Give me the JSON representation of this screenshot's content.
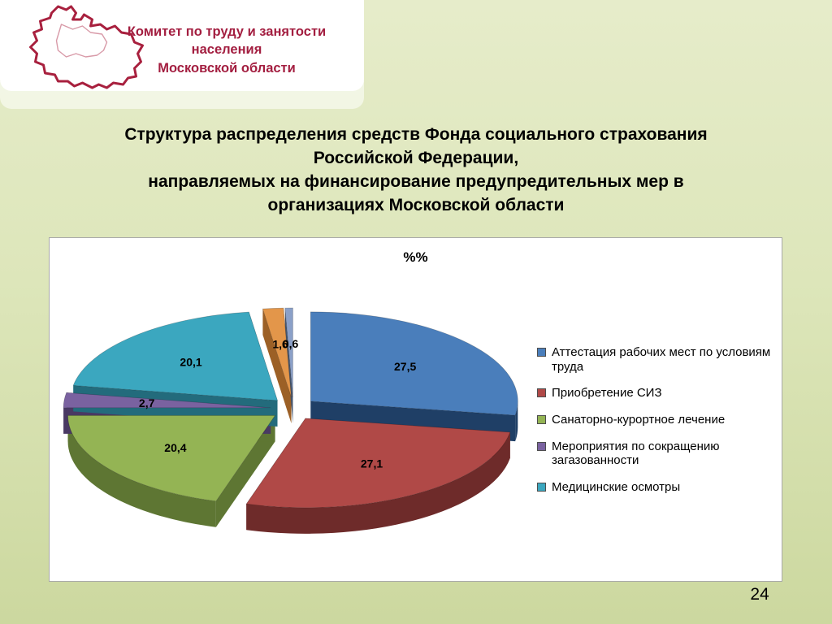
{
  "header": {
    "org_line1": "Комитет по труду и занятости населения",
    "org_line2": "Московской области"
  },
  "title": {
    "lines": [
      "Структура распределения средств Фонда социального страхования",
      "Российской Федерации,",
      "направляемых на финансирование предупредительных мер в",
      "организациях Московской области"
    ]
  },
  "page_number": "24",
  "chart_data": {
    "type": "pie",
    "title": "%%",
    "is_3d": true,
    "exploded": true,
    "legend_position": "right",
    "slices": [
      {
        "label": "Аттестация рабочих мест по условиям труда",
        "value": 27.5,
        "display": "27,5",
        "color": "#4a7ebb",
        "dark": "#1f3f66"
      },
      {
        "label": "Приобретение СИЗ",
        "value": 27.1,
        "display": "27,1",
        "color": "#b04947",
        "dark": "#6e2b2a"
      },
      {
        "label": "Санаторно-курортное лечение",
        "value": 20.4,
        "display": "20,4",
        "color": "#94b454",
        "dark": "#5e7633"
      },
      {
        "label": "Мероприятия по сокращению загазованности",
        "value": 2.7,
        "display": "2,7",
        "color": "#7a62a0",
        "dark": "#493963"
      },
      {
        "label": "Медицинские осмотры",
        "value": 20.1,
        "display": "20,1",
        "color": "#3ba7bf",
        "dark": "#236b7c"
      },
      {
        "label": "",
        "value": 1.6,
        "display": "1,6",
        "color": "#e3964a",
        "dark": "#9c6026"
      },
      {
        "label": "",
        "value": 0.6,
        "display": "0,6",
        "color": "#8ba0c8",
        "dark": "#45556e"
      }
    ],
    "legend": [
      {
        "label": "Аттестация рабочих мест по условиям труда",
        "color": "#4a7ebb"
      },
      {
        "label": "Приобретение СИЗ",
        "color": "#b04947"
      },
      {
        "label": "Санаторно-курортное лечение",
        "color": "#94b454"
      },
      {
        "label": "Мероприятия по сокращению загазованности",
        "color": "#7a62a0"
      },
      {
        "label": "Медицинские осмотры",
        "color": "#3ba7bf"
      }
    ]
  }
}
